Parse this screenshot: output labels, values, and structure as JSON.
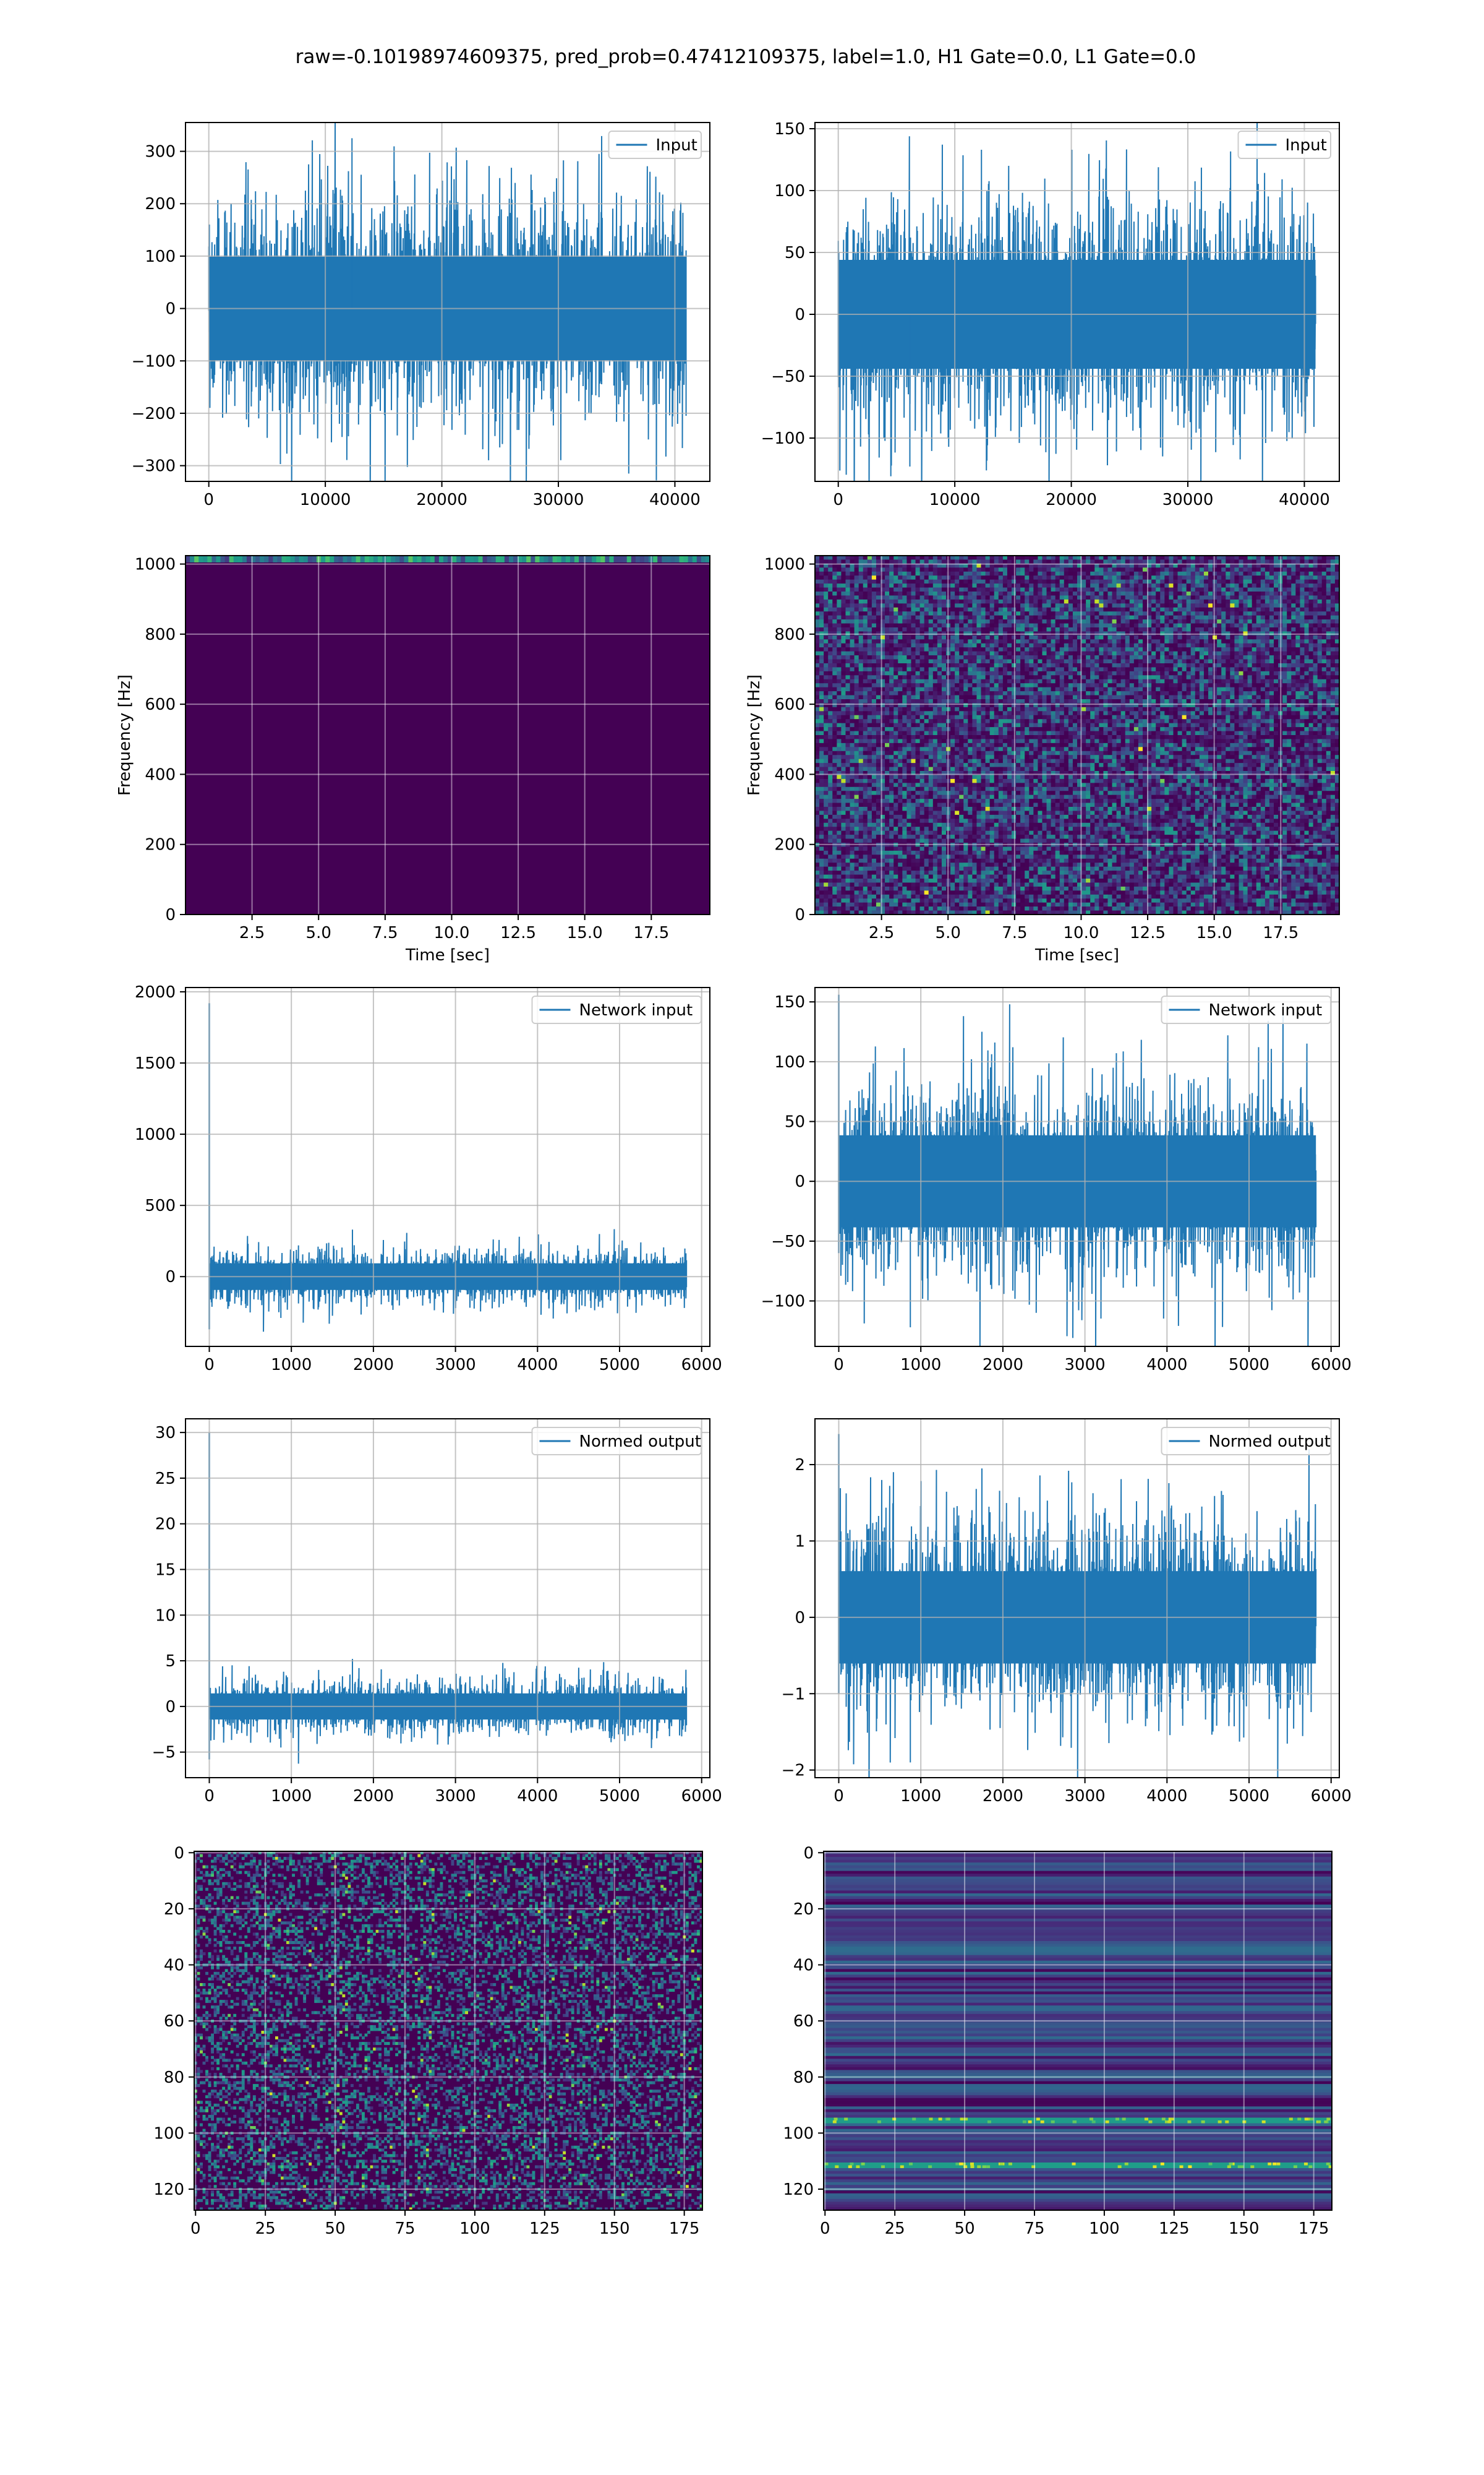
{
  "title": "raw=-0.10198974609375, pred_prob=0.47412109375, label=1.0, H1 Gate=0.0, L1 Gate=0.0",
  "colors": {
    "line": "#1f77b4",
    "grid": "#b0b0b0",
    "viridis_dark": "#440154",
    "viridis_bright": "#fde725"
  },
  "chart_data": [
    {
      "id": "p0",
      "type": "line",
      "series": [
        {
          "name": "Input"
        }
      ],
      "legend": "top-right",
      "xlim": [
        -2000,
        43000
      ],
      "ylim": [
        -330,
        355
      ],
      "grid": true,
      "xticks": [
        0,
        10000,
        20000,
        30000,
        40000
      ],
      "yticks": [
        -300,
        -200,
        -100,
        0,
        100,
        200,
        300
      ],
      "xticklabels": [
        "0",
        "10000",
        "20000",
        "30000",
        "40000"
      ],
      "yticklabels": [
        "−300",
        "−200",
        "−100",
        "0",
        "100",
        "200",
        "300"
      ],
      "noise": {
        "x_start": 0,
        "x_end": 40960,
        "amplitude": 180,
        "peak_max": 325,
        "peak_min": -297
      }
    },
    {
      "id": "p1",
      "type": "line",
      "series": [
        {
          "name": "Input"
        }
      ],
      "legend": "top-right",
      "xlim": [
        -2000,
        43000
      ],
      "ylim": [
        -135,
        155
      ],
      "grid": true,
      "xticks": [
        0,
        10000,
        20000,
        30000,
        40000
      ],
      "yticks": [
        -100,
        -50,
        0,
        50,
        100,
        150
      ],
      "xticklabels": [
        "0",
        "10000",
        "20000",
        "30000",
        "40000"
      ],
      "yticklabels": [
        "−100",
        "−50",
        "0",
        "50",
        "100",
        "150"
      ],
      "noise": {
        "x_start": 0,
        "x_end": 40960,
        "amplitude": 80,
        "peak_max": 133,
        "peak_min": -123
      }
    },
    {
      "id": "p2",
      "type": "heatmap",
      "xlim": [
        0,
        19.7
      ],
      "ylim": [
        0,
        1024
      ],
      "grid": true,
      "xlabel": "Time [sec]",
      "ylabel": "Frequency [Hz]",
      "xticks": [
        2.5,
        5.0,
        7.5,
        10.0,
        12.5,
        15.0,
        17.5
      ],
      "yticks": [
        0,
        200,
        400,
        600,
        800,
        1000
      ],
      "xticklabels": [
        "2.5",
        "5.0",
        "7.5",
        "10.0",
        "12.5",
        "15.0",
        "17.5"
      ],
      "yticklabels": [
        "0",
        "200",
        "400",
        "600",
        "800",
        "1000"
      ],
      "pattern": "dark-with-bright-top-row"
    },
    {
      "id": "p3",
      "type": "heatmap",
      "xlim": [
        0,
        19.7
      ],
      "ylim": [
        0,
        1024
      ],
      "grid": true,
      "xlabel": "Time [sec]",
      "ylabel": "Frequency [Hz]",
      "xticks": [
        2.5,
        5.0,
        7.5,
        10.0,
        12.5,
        15.0,
        17.5
      ],
      "yticks": [
        0,
        200,
        400,
        600,
        800,
        1000
      ],
      "xticklabels": [
        "2.5",
        "5.0",
        "7.5",
        "10.0",
        "12.5",
        "15.0",
        "17.5"
      ],
      "yticklabels": [
        "0",
        "200",
        "400",
        "600",
        "800",
        "1000"
      ],
      "pattern": "speckle"
    },
    {
      "id": "p4",
      "type": "line",
      "series": [
        {
          "name": "Network input"
        }
      ],
      "legend": "top-right",
      "xlim": [
        -290,
        6100
      ],
      "ylim": [
        -490,
        2030
      ],
      "grid": true,
      "xticks": [
        0,
        1000,
        2000,
        3000,
        4000,
        5000,
        6000
      ],
      "yticks": [
        0,
        500,
        1000,
        1500,
        2000
      ],
      "xticklabels": [
        "0",
        "1000",
        "2000",
        "3000",
        "4000",
        "5000",
        "6000"
      ],
      "yticklabels": [
        "0",
        "500",
        "1000",
        "1500",
        "2000"
      ],
      "noise": {
        "x_start": 0,
        "x_end": 5815,
        "amplitude": 170,
        "peak_max": 330,
        "peak_min": -290,
        "spike_max": 1920,
        "spike_min": -370
      }
    },
    {
      "id": "p5",
      "type": "line",
      "series": [
        {
          "name": "Network input"
        }
      ],
      "legend": "top-right",
      "xlim": [
        -290,
        6100
      ],
      "ylim": [
        -138,
        162
      ],
      "grid": true,
      "xticks": [
        0,
        1000,
        2000,
        3000,
        4000,
        5000,
        6000
      ],
      "yticks": [
        -100,
        -50,
        0,
        50,
        100,
        150
      ],
      "xticklabels": [
        "0",
        "1000",
        "2000",
        "3000",
        "4000",
        "5000",
        "6000"
      ],
      "yticklabels": [
        "−100",
        "−50",
        "0",
        "50",
        "100",
        "150"
      ],
      "noise": {
        "x_start": 0,
        "x_end": 5815,
        "amplitude": 70,
        "peak_max": 125,
        "peak_min": -122,
        "spike_max": 156,
        "spike_min": -60
      }
    },
    {
      "id": "p6",
      "type": "line",
      "series": [
        {
          "name": "Normed output"
        }
      ],
      "legend": "top-right",
      "xlim": [
        -290,
        6100
      ],
      "ylim": [
        -7.8,
        31.5
      ],
      "grid": true,
      "xticks": [
        0,
        1000,
        2000,
        3000,
        4000,
        5000,
        6000
      ],
      "yticks": [
        -5,
        0,
        5,
        10,
        15,
        20,
        25,
        30
      ],
      "xticklabels": [
        "0",
        "1000",
        "2000",
        "3000",
        "4000",
        "5000",
        "6000"
      ],
      "yticklabels": [
        "−5",
        "0",
        "5",
        "10",
        "15",
        "20",
        "25",
        "30"
      ],
      "noise": {
        "x_start": 0,
        "x_end": 5815,
        "amplitude": 2.6,
        "peak_max": 5.2,
        "peak_min": -4.5,
        "spike_max": 30,
        "spike_min": -5.8
      }
    },
    {
      "id": "p7",
      "type": "line",
      "series": [
        {
          "name": "Normed output"
        }
      ],
      "legend": "top-right",
      "xlim": [
        -290,
        6100
      ],
      "ylim": [
        -2.1,
        2.6
      ],
      "grid": true,
      "xticks": [
        0,
        1000,
        2000,
        3000,
        4000,
        5000,
        6000
      ],
      "yticks": [
        -2,
        -1,
        0,
        1,
        2
      ],
      "xticklabels": [
        "0",
        "1000",
        "2000",
        "3000",
        "4000",
        "5000",
        "6000"
      ],
      "yticklabels": [
        "−2",
        "−1",
        "0",
        "1",
        "2"
      ],
      "noise": {
        "x_start": 0,
        "x_end": 5815,
        "amplitude": 1.1,
        "peak_max": 1.95,
        "peak_min": -1.9,
        "spike_max": 2.4,
        "spike_min": -1.0
      }
    },
    {
      "id": "p8",
      "type": "heatmap",
      "xlim": [
        -0.5,
        181.5
      ],
      "ylim": [
        127.5,
        -0.5
      ],
      "grid": true,
      "xticks": [
        0,
        25,
        50,
        75,
        100,
        125,
        150,
        175
      ],
      "yticks": [
        0,
        20,
        40,
        60,
        80,
        100,
        120
      ],
      "xticklabels": [
        "0",
        "25",
        "50",
        "75",
        "100",
        "125",
        "150",
        "175"
      ],
      "yticklabels": [
        "0",
        "20",
        "40",
        "60",
        "80",
        "100",
        "120"
      ],
      "pattern": "random-cells"
    },
    {
      "id": "p9",
      "type": "heatmap",
      "xlim": [
        -0.5,
        181.5
      ],
      "ylim": [
        127.5,
        -0.5
      ],
      "grid": true,
      "xticks": [
        0,
        25,
        50,
        75,
        100,
        125,
        150,
        175
      ],
      "yticks": [
        0,
        20,
        40,
        60,
        80,
        100,
        120
      ],
      "xticklabels": [
        "0",
        "25",
        "50",
        "75",
        "100",
        "125",
        "150",
        "175"
      ],
      "yticklabels": [
        "0",
        "20",
        "40",
        "60",
        "80",
        "100",
        "120"
      ],
      "pattern": "horizontal-bands"
    }
  ]
}
